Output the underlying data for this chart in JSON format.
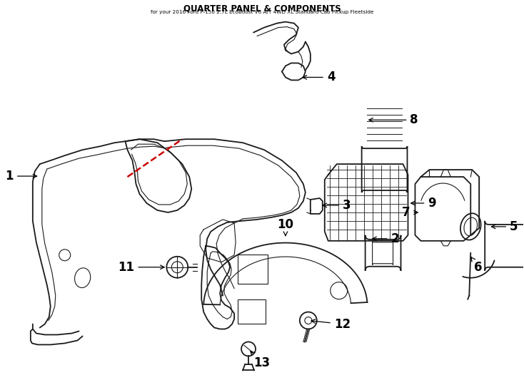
{
  "title": "QUARTER PANEL & COMPONENTS",
  "subtitle": "for your 2016 Ford F-150 2.7L EcoBoost V6 A/T 4WD XL Standard Cab Pickup Fleetside",
  "background_color": "#ffffff",
  "line_color": "#1a1a1a",
  "red_dash_color": "#cc0000",
  "figsize": [
    7.34,
    5.4
  ],
  "dpi": 100
}
